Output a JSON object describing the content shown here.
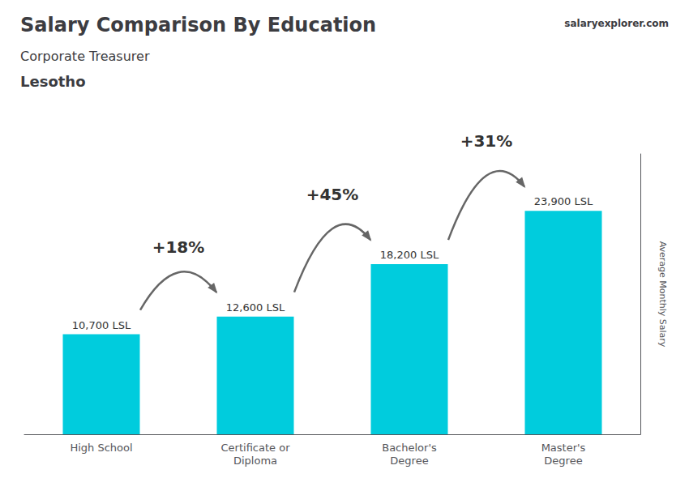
{
  "chart_data": {
    "type": "bar",
    "title": "Salary Comparison By Education",
    "subtitle": "Corporate Treasurer",
    "country": "Lesotho",
    "watermark": "salaryexplorer.com",
    "ylabel": "Average Monthly Salary",
    "categories": [
      "High School",
      "Certificate or\nDiploma",
      "Bachelor's\nDegree",
      "Master's\nDegree"
    ],
    "values": [
      10700,
      12600,
      18200,
      23900
    ],
    "value_labels": [
      "10,700 LSL",
      "12,600 LSL",
      "18,200 LSL",
      "23,900 LSL"
    ],
    "data_labels": true,
    "annotations": [
      "+18%",
      "+45%",
      "+31%"
    ],
    "color": "#00ccdd",
    "ylim": [
      0,
      30000
    ],
    "tick_labels": "x",
    "grid": false
  }
}
